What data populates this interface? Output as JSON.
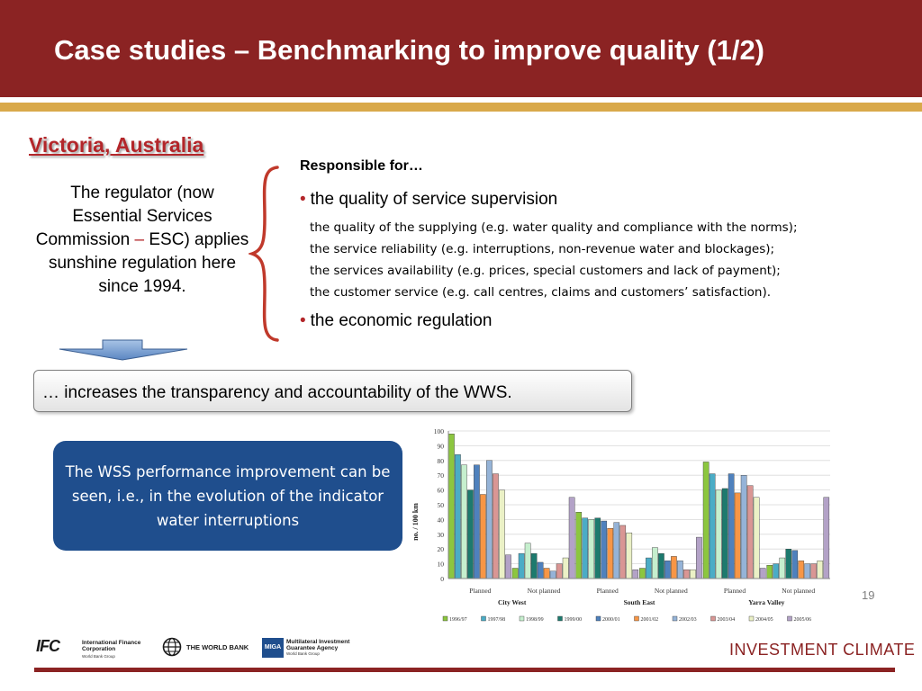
{
  "slide": {
    "title": "Case studies – Benchmarking to improve quality (1/2)",
    "page_number": "19",
    "accent_color": "#8b2323",
    "gold_color": "#d9a94a"
  },
  "left": {
    "region": "Victoria, Australia",
    "regulator_before": "The regulator (now Essential Services Commission ",
    "regulator_dash": "–",
    "regulator_after": " ESC) applies sunshine regulation here since 1994."
  },
  "responsibilities": {
    "label": "Responsible for…",
    "bullet_1": "the quality of service supervision",
    "sub_items": [
      "the quality of the supplying (e.g. water quality and compliance with the norms);",
      "the service reliability (e.g. interruptions, non-revenue water and blockages);",
      "the services availability (e.g. prices, special customers and lack of payment);",
      "the customer service (e.g. call centres, claims and customers’ satisfaction)."
    ],
    "bullet_2": "the economic regulation"
  },
  "transparency_text": "… increases the transparency and accountability of the WWS.",
  "highlight_text": "The WSS performance improvement can be seen, i.e., in the evolution of the indicator water interruptions",
  "chart_data": {
    "type": "bar",
    "ylabel": "no. / 100 km",
    "ylim": [
      0,
      100
    ],
    "yticks": [
      0,
      10,
      20,
      30,
      40,
      50,
      60,
      70,
      80,
      90,
      100
    ],
    "grid": true,
    "legend": "bottom",
    "categories": [
      "Planned",
      "Not planned",
      "Planned",
      "Not planned",
      "Planned",
      "Not planned"
    ],
    "regions": [
      "City West",
      "South East",
      "Yarra Valley"
    ],
    "series": [
      {
        "name": "1996/97",
        "color": "#8cc63f",
        "values": [
          98,
          7,
          45,
          7,
          79,
          9
        ]
      },
      {
        "name": "1997/98",
        "color": "#4bacc6",
        "values": [
          84,
          17,
          41,
          14,
          71,
          10
        ]
      },
      {
        "name": "1998/99",
        "color": "#c6efce",
        "values": [
          77,
          24,
          40,
          21,
          60,
          14
        ]
      },
      {
        "name": "1999/00",
        "color": "#1d7a6e",
        "values": [
          60,
          17,
          41,
          17,
          61,
          20
        ]
      },
      {
        "name": "2000/01",
        "color": "#4f81bd",
        "values": [
          77,
          11,
          39,
          12,
          71,
          19
        ]
      },
      {
        "name": "2001/02",
        "color": "#f79646",
        "values": [
          57,
          7,
          34,
          15,
          58,
          12
        ]
      },
      {
        "name": "2002/03",
        "color": "#95b3d7",
        "values": [
          80,
          5,
          38,
          12,
          70,
          10
        ]
      },
      {
        "name": "2003/04",
        "color": "#d99694",
        "values": [
          71,
          10,
          36,
          6,
          63,
          10
        ]
      },
      {
        "name": "2004/05",
        "color": "#ebf1c6",
        "values": [
          60,
          14,
          31,
          6,
          55,
          12
        ]
      },
      {
        "name": "2005/06",
        "color": "#b3a2c7",
        "values": [
          16,
          55,
          6,
          28,
          7,
          55
        ]
      }
    ]
  },
  "footer": {
    "ifc_mark": "IFC",
    "ifc_name": "International Finance Corporation",
    "ifc_sub": "World Bank Group",
    "wb_name": "THE WORLD BANK",
    "miga_mark": "MIGA",
    "miga_name": "Multilateral Investment Guarantee Agency",
    "miga_sub": "World Bank Group",
    "brand": "INVESTMENT CLIMATE"
  }
}
